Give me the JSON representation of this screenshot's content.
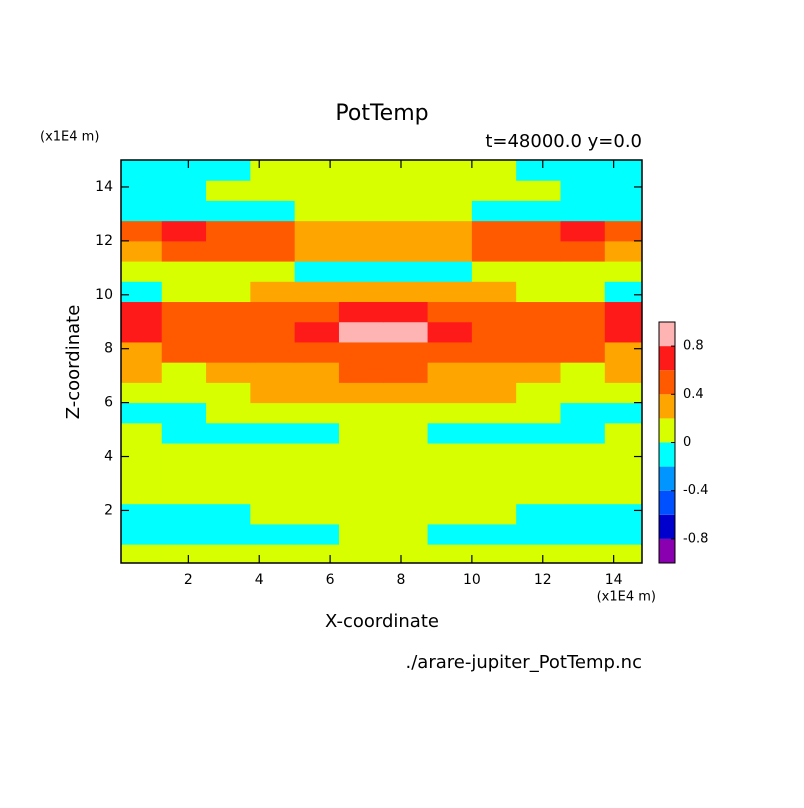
{
  "chart_data": {
    "type": "contour",
    "title": "PotTemp",
    "subtitle": "t=48000.0 y=0.0",
    "x_label": "X-coordinate",
    "y_label": "Z-coordinate",
    "x_unit": "(x1E4 m)",
    "y_unit": "(x1E4 m)",
    "footer": "./arare-jupiter_PotTemp.nc",
    "xlim": [
      0.1,
      14.8
    ],
    "ylim": [
      0.05,
      15
    ],
    "xticks": [
      2,
      4,
      6,
      8,
      10,
      12,
      14
    ],
    "yticks": [
      2,
      4,
      6,
      8,
      10,
      12,
      14
    ],
    "x": [
      0.625,
      1.875,
      3.125,
      4.375,
      5.625,
      6.875,
      8.125,
      9.375,
      10.625,
      11.875,
      13.125,
      14.375
    ],
    "y": [
      0.375,
      1.125,
      1.875,
      2.625,
      3.375,
      4.125,
      4.875,
      5.625,
      6.375,
      7.125,
      7.875,
      8.625,
      9.375,
      10.125,
      10.875,
      11.625,
      12.375,
      13.125,
      13.875,
      14.625
    ],
    "z": [
      [
        0.1,
        0.1,
        0.1,
        0.1,
        0.1,
        0.1,
        0.1,
        0.1,
        0.1,
        0.1,
        0.1,
        0.1
      ],
      [
        -0.1,
        -0.1,
        -0.1,
        -0.1,
        -0.1,
        0.1,
        0.1,
        -0.1,
        -0.1,
        -0.1,
        -0.1,
        -0.1
      ],
      [
        -0.1,
        -0.1,
        -0.1,
        0.1,
        0.1,
        0.1,
        0.1,
        0.1,
        0.1,
        -0.1,
        -0.1,
        -0.1
      ],
      [
        0.1,
        0.1,
        0.1,
        0.1,
        0.1,
        0.1,
        0.1,
        0.1,
        0.1,
        0.1,
        0.1,
        0.1
      ],
      [
        0.1,
        0.1,
        0.1,
        0.1,
        0.1,
        0.1,
        0.1,
        0.1,
        0.1,
        0.1,
        0.1,
        0.1
      ],
      [
        0.1,
        0.1,
        0.1,
        0.1,
        0.1,
        0.1,
        0.1,
        0.1,
        0.1,
        0.1,
        0.1,
        0.1
      ],
      [
        0.1,
        -0.1,
        -0.1,
        -0.1,
        -0.1,
        0.1,
        0.1,
        -0.1,
        -0.1,
        -0.1,
        -0.1,
        0.1
      ],
      [
        -0.1,
        -0.1,
        0.1,
        0.1,
        0.1,
        0.1,
        0.1,
        0.1,
        0.1,
        0.1,
        -0.1,
        -0.1
      ],
      [
        0.1,
        0.1,
        0.1,
        0.3,
        0.3,
        0.3,
        0.3,
        0.3,
        0.3,
        0.1,
        0.1,
        0.1
      ],
      [
        0.3,
        0.1,
        0.3,
        0.3,
        0.3,
        0.5,
        0.5,
        0.3,
        0.3,
        0.3,
        0.1,
        0.3
      ],
      [
        0.3,
        0.5,
        0.5,
        0.5,
        0.5,
        0.5,
        0.5,
        0.5,
        0.5,
        0.5,
        0.5,
        0.3
      ],
      [
        0.7,
        0.5,
        0.5,
        0.5,
        0.7,
        0.9,
        0.9,
        0.7,
        0.5,
        0.5,
        0.5,
        0.7
      ],
      [
        0.7,
        0.5,
        0.5,
        0.5,
        0.5,
        0.7,
        0.7,
        0.5,
        0.5,
        0.5,
        0.5,
        0.7
      ],
      [
        -0.1,
        0.1,
        0.1,
        0.3,
        0.3,
        0.3,
        0.3,
        0.3,
        0.3,
        0.1,
        0.1,
        -0.1
      ],
      [
        0.1,
        0.1,
        0.1,
        0.1,
        -0.1,
        -0.1,
        -0.1,
        -0.1,
        0.1,
        0.1,
        0.1,
        0.1
      ],
      [
        0.3,
        0.5,
        0.5,
        0.5,
        0.3,
        0.3,
        0.3,
        0.3,
        0.5,
        0.5,
        0.5,
        0.3
      ],
      [
        0.5,
        0.7,
        0.5,
        0.5,
        0.3,
        0.3,
        0.3,
        0.3,
        0.5,
        0.5,
        0.7,
        0.5
      ],
      [
        -0.1,
        -0.1,
        -0.1,
        -0.1,
        0.1,
        0.1,
        0.1,
        0.1,
        -0.1,
        -0.1,
        -0.1,
        -0.1
      ],
      [
        -0.1,
        -0.1,
        0.1,
        0.1,
        0.1,
        0.1,
        0.1,
        0.1,
        0.1,
        0.1,
        -0.1,
        -0.1
      ],
      [
        -0.1,
        -0.1,
        -0.1,
        0.1,
        0.1,
        0.1,
        0.1,
        0.1,
        0.1,
        -0.1,
        -0.1,
        -0.1
      ]
    ],
    "levels": [
      -1,
      -0.8,
      -0.6,
      -0.4,
      -0.2,
      0,
      0.2,
      0.4,
      0.6,
      0.8,
      1
    ],
    "colors": [
      "#8a00b0",
      "#0000cd",
      "#0050ff",
      "#0095ff",
      "#00ffff",
      "#d7ff00",
      "#ffa500",
      "#ff5a00",
      "#ff1a1a",
      "#ffb4b4"
    ],
    "colorbar_ticks": [
      -0.8,
      -0.4,
      0,
      0.4,
      0.8
    ]
  }
}
